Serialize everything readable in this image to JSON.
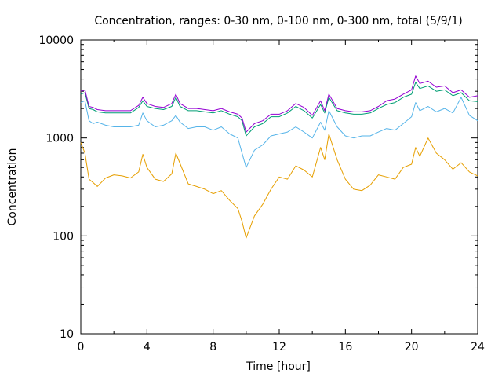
{
  "chart_data": {
    "type": "line",
    "title": "Concentration, ranges: 0-30 nm, 0-100 nm, 0-300 nm, total (5/9/1)",
    "xlabel": "Time [hour]",
    "ylabel": "Concentration",
    "xlim": [
      0,
      24
    ],
    "ylim": [
      10,
      10000
    ],
    "yscale": "log",
    "grid": false,
    "legend": "none",
    "xticks": [
      0,
      4,
      8,
      12,
      16,
      20,
      24
    ],
    "yticks": [
      10,
      100,
      1000,
      10000
    ],
    "x": [
      0,
      0.25,
      0.5,
      0.75,
      1,
      1.5,
      2,
      2.5,
      3,
      3.5,
      3.75,
      4,
      4.5,
      5,
      5.5,
      5.75,
      6,
      6.5,
      7,
      7.5,
      8,
      8.5,
      9,
      9.5,
      9.75,
      10,
      10.5,
      11,
      11.5,
      12,
      12.5,
      13,
      13.5,
      14,
      14.5,
      14.75,
      15,
      15.5,
      16,
      16.5,
      17,
      17.5,
      18,
      18.5,
      19,
      19.5,
      20,
      20.25,
      20.5,
      21,
      21.5,
      22,
      22.5,
      23,
      23.5,
      24
    ],
    "series": [
      {
        "color": "#e69f00",
        "values": [
          900,
          700,
          380,
          350,
          320,
          390,
          420,
          410,
          390,
          450,
          680,
          500,
          380,
          360,
          430,
          700,
          550,
          340,
          320,
          300,
          270,
          290,
          230,
          190,
          140,
          95,
          160,
          210,
          300,
          400,
          380,
          520,
          470,
          400,
          800,
          600,
          1100,
          600,
          380,
          300,
          290,
          330,
          420,
          400,
          380,
          500,
          540,
          800,
          650,
          1000,
          700,
          600,
          480,
          560,
          450,
          410
        ]
      },
      {
        "color": "#56b4e9",
        "values": [
          2300,
          2400,
          1500,
          1400,
          1450,
          1350,
          1300,
          1300,
          1300,
          1350,
          1800,
          1500,
          1300,
          1350,
          1500,
          1700,
          1450,
          1250,
          1300,
          1300,
          1200,
          1300,
          1100,
          1000,
          700,
          500,
          750,
          850,
          1050,
          1100,
          1150,
          1300,
          1150,
          1000,
          1450,
          1200,
          1900,
          1300,
          1050,
          1000,
          1050,
          1050,
          1150,
          1250,
          1200,
          1400,
          1650,
          2300,
          1900,
          2100,
          1850,
          2000,
          1800,
          2600,
          1700,
          1500
        ]
      },
      {
        "color": "#009e73",
        "values": [
          2800,
          2900,
          2000,
          1950,
          1850,
          1800,
          1800,
          1800,
          1800,
          2050,
          2400,
          2100,
          2000,
          1950,
          2100,
          2600,
          2100,
          1900,
          1900,
          1850,
          1800,
          1900,
          1750,
          1650,
          1500,
          1050,
          1300,
          1400,
          1650,
          1650,
          1800,
          2100,
          1900,
          1600,
          2200,
          1800,
          2600,
          1900,
          1800,
          1750,
          1750,
          1800,
          2000,
          2200,
          2300,
          2600,
          2800,
          3700,
          3200,
          3400,
          3000,
          3100,
          2700,
          2900,
          2400,
          2350
        ]
      },
      {
        "color": "#9400d3",
        "values": [
          3000,
          3100,
          2100,
          2050,
          1950,
          1900,
          1900,
          1900,
          1900,
          2150,
          2600,
          2250,
          2100,
          2050,
          2250,
          2800,
          2250,
          2000,
          2000,
          1950,
          1900,
          2000,
          1850,
          1750,
          1600,
          1150,
          1400,
          1500,
          1750,
          1750,
          1900,
          2250,
          2050,
          1700,
          2400,
          1900,
          2800,
          2000,
          1900,
          1850,
          1850,
          1900,
          2100,
          2400,
          2500,
          2800,
          3100,
          4300,
          3600,
          3800,
          3300,
          3400,
          2900,
          3100,
          2600,
          2700
        ]
      }
    ]
  }
}
